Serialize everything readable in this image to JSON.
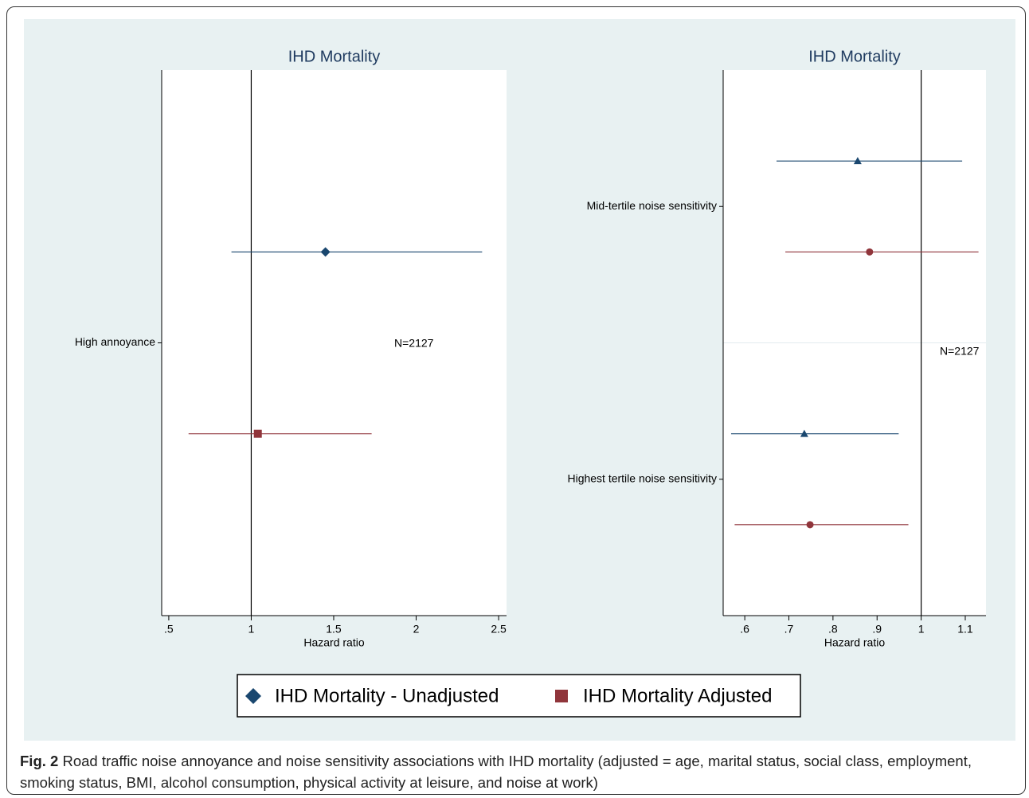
{
  "chart_data": [
    {
      "type": "forest",
      "title": "IHD Mortality",
      "xlabel": "Hazard ratio",
      "categories": [
        "High annoyance"
      ],
      "annotation": "N=2127",
      "xlim": [
        0.457,
        2.548
      ],
      "xticks": [
        {
          "value": 0.5,
          "label": ".5"
        },
        1,
        1.5,
        2,
        2.5
      ],
      "refline": 1,
      "series": [
        {
          "name": "IHD Mortality - Unadjusted",
          "color": "#1a476f",
          "marker": "diamond",
          "values": [
            1.45
          ],
          "lower": [
            0.88
          ],
          "upper": [
            2.4
          ]
        },
        {
          "name": "IHD Mortality Adjusted",
          "color": "#90353b",
          "marker": "square",
          "values": [
            1.04
          ],
          "lower": [
            0.62
          ],
          "upper": [
            1.73
          ]
        }
      ]
    },
    {
      "type": "forest",
      "title": "IHD Mortality",
      "xlabel": "Hazard ratio",
      "categories": [
        "Mid-tertile noise sensitivity",
        "Highest tertile noise sensitivity"
      ],
      "annotation": "N=2127",
      "xlim": [
        0.551,
        1.147
      ],
      "xticks": [
        {
          "value": 0.6,
          "label": ".6"
        },
        {
          "value": 0.7,
          "label": ".7"
        },
        {
          "value": 0.8,
          "label": ".8"
        },
        {
          "value": 0.9,
          "label": ".9"
        },
        1,
        1.1
      ],
      "refline": 1,
      "series": [
        {
          "color": "#1a476f",
          "marker": "triangle",
          "values": [
            0.856,
            0.735
          ],
          "lower": [
            0.672,
            0.569
          ],
          "upper": [
            1.093,
            0.949
          ]
        },
        {
          "color": "#90353b",
          "marker": "circle",
          "values": [
            0.883,
            0.748
          ],
          "lower": [
            0.692,
            0.577
          ],
          "upper": [
            1.13,
            0.971
          ]
        }
      ]
    }
  ],
  "caption": {
    "label": "Fig. 2",
    "text": "Road traffic noise annoyance and noise sensitivity associations with IHD mortality (adjusted = age, marital status, social class, employment, smoking status, BMI, alcohol consumption, physical activity at leisure, and noise at work)"
  }
}
